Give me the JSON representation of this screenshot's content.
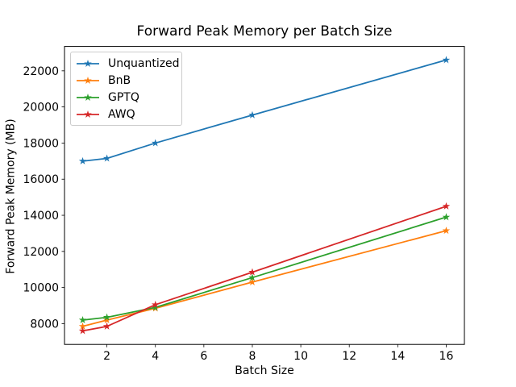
{
  "window": {
    "background_color": "#ffffff",
    "axis_color": "#000000"
  },
  "chart_data": {
    "type": "line",
    "title": "Forward Peak Memory per Batch Size",
    "xlabel": "Batch Size",
    "ylabel": "Forward Peak Memory (MB)",
    "x": [
      1,
      2,
      4,
      8,
      16
    ],
    "series": [
      {
        "name": "Unquantized",
        "color": "#1f77b4",
        "values": [
          17000,
          17150,
          18000,
          19550,
          22600
        ]
      },
      {
        "name": "BnB",
        "color": "#ff7f0e",
        "values": [
          7850,
          8200,
          8850,
          10300,
          13150
        ]
      },
      {
        "name": "GPTQ",
        "color": "#2ca02c",
        "values": [
          8200,
          8350,
          8900,
          10550,
          13900
        ]
      },
      {
        "name": "AWQ",
        "color": "#d62728",
        "values": [
          7600,
          7850,
          9050,
          10850,
          14500
        ]
      }
    ],
    "x_ticks": [
      2,
      4,
      6,
      8,
      10,
      12,
      14,
      16
    ],
    "y_ticks": [
      8000,
      10000,
      12000,
      14000,
      16000,
      18000,
      20000,
      22000
    ],
    "xlim": [
      0.25,
      16.75
    ],
    "ylim": [
      6850,
      23350
    ],
    "grid": false,
    "marker": "star",
    "legend_position": "upper-left"
  }
}
